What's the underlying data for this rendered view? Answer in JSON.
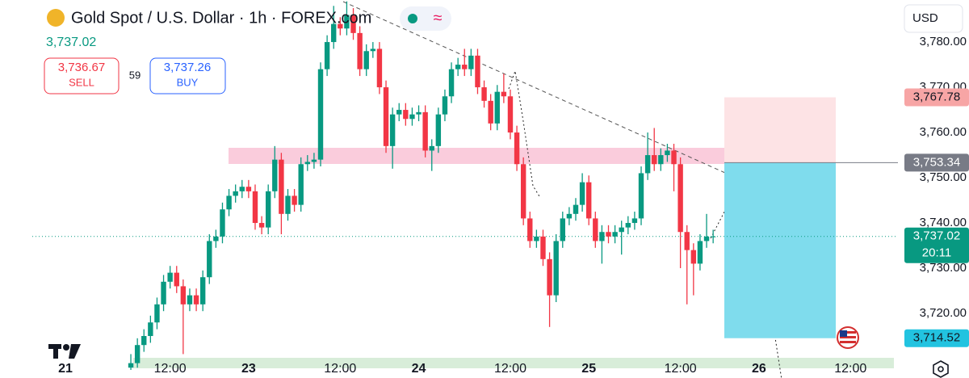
{
  "header": {
    "title": "Gold Spot / U.S. Dollar · 1h · FOREX.com",
    "last_price": "3,737.02",
    "sell_price": "3,736.67",
    "sell_label": "SELL",
    "spread": "59",
    "buy_price": "3,737.26",
    "buy_label": "BUY",
    "currency": "USD"
  },
  "chart_data": {
    "type": "candlestick",
    "up_color": "#089981",
    "down_color": "#f23645",
    "x": [
      1,
      2,
      3,
      4,
      5,
      6,
      7,
      8,
      9,
      10,
      11,
      12,
      13,
      14,
      15,
      16,
      17,
      18,
      19,
      20,
      21,
      22,
      23,
      24,
      25,
      26,
      27,
      28,
      29,
      30,
      31,
      32,
      33,
      34,
      35,
      36,
      37,
      38,
      39,
      40,
      41,
      42,
      43,
      44,
      45,
      46,
      47,
      48,
      49,
      50,
      51,
      52,
      53,
      54,
      55,
      56,
      57,
      58,
      59,
      60,
      61,
      62,
      63,
      64,
      65,
      66,
      67,
      68,
      69,
      70,
      71,
      72,
      73,
      74,
      75,
      76,
      77,
      78,
      79,
      80,
      81,
      82,
      83,
      84,
      85,
      86,
      87,
      88,
      89,
      90
    ],
    "open": [
      3708,
      3709,
      3713,
      3715,
      3718,
      3722,
      3727,
      3729,
      3726,
      3722,
      3724,
      3722,
      3728,
      3736,
      3737,
      3743,
      3746,
      3747,
      3748,
      3747,
      3740,
      3739,
      3747,
      3754,
      3742,
      3746,
      3744,
      3753,
      3753.5,
      3754,
      3774,
      3780,
      3784,
      3783,
      3786,
      3782,
      3774,
      3778,
      3778.5,
      3770,
      3757,
      3764,
      3765,
      3763,
      3764,
      3764.5,
      3756,
      3757,
      3764,
      3768,
      3774,
      3775,
      3774,
      3777,
      3770,
      3767,
      3762,
      3769,
      3768,
      3760,
      3753,
      3741,
      3736,
      3737,
      3732,
      3724,
      3736,
      3741,
      3742,
      3744,
      3749,
      3741,
      3736,
      3738,
      3737,
      3738,
      3739,
      3740,
      3741,
      3751,
      3755,
      3753,
      3755,
      3756,
      3753,
      3738,
      3734,
      3731,
      3736,
      3737
    ],
    "high": [
      3711,
      3714.5,
      3716.5,
      3719.5,
      3723.5,
      3728.5,
      3730.5,
      3730.5,
      3727.5,
      3725.5,
      3725.5,
      3729.5,
      3737.5,
      3738.5,
      3744.5,
      3747.5,
      3748.5,
      3749.5,
      3749.5,
      3748.5,
      3741.5,
      3748.5,
      3757,
      3755.5,
      3747.5,
      3747.5,
      3754.5,
      3755,
      3755.5,
      3775.5,
      3781.5,
      3788,
      3785.5,
      3789,
      3787.5,
      3783.5,
      3779.5,
      3780,
      3780,
      3771.5,
      3765.5,
      3766.5,
      3766.5,
      3765.5,
      3766,
      3766,
      3758.5,
      3765.5,
      3769.5,
      3775.5,
      3776.5,
      3778.5,
      3778.5,
      3778.5,
      3771.5,
      3768.5,
      3770.5,
      3773,
      3769.5,
      3761.5,
      3754.5,
      3742.5,
      3738.5,
      3738.5,
      3733.5,
      3737.5,
      3742.5,
      3743.5,
      3745.5,
      3751,
      3750.5,
      3742.5,
      3739.5,
      3739.5,
      3739.5,
      3740.5,
      3741.5,
      3742.5,
      3752.5,
      3760,
      3761,
      3756.5,
      3757.5,
      3757.5,
      3754.5,
      3739.5,
      3735.5,
      3737.5,
      3742,
      3738.5
    ],
    "low": [
      3707.5,
      3708,
      3711.5,
      3713.5,
      3716.5,
      3720.5,
      3725.5,
      3724.5,
      3711,
      3720.5,
      3720.5,
      3720.5,
      3726.5,
      3734.5,
      3735.5,
      3741.5,
      3744.5,
      3745.5,
      3745.5,
      3738.5,
      3737.5,
      3737.5,
      3745.5,
      3737.5,
      3740.5,
      3742.5,
      3742.5,
      3751.5,
      3752,
      3752.5,
      3772.5,
      3778.5,
      3781.5,
      3781.5,
      3780.5,
      3772.5,
      3772.5,
      3776.5,
      3768.5,
      3755.5,
      3752,
      3762.5,
      3761.5,
      3761.5,
      3762.5,
      3754.5,
      3751.5,
      3755.5,
      3762.5,
      3766.5,
      3772.5,
      3772.5,
      3772.5,
      3768.5,
      3765.5,
      3760.5,
      3760.5,
      3766.5,
      3758.5,
      3751.5,
      3739.5,
      3734.5,
      3734.5,
      3730.5,
      3717,
      3722.5,
      3734.5,
      3739.5,
      3740.5,
      3742.5,
      3739.5,
      3734.5,
      3731,
      3735.5,
      3735.5,
      3733,
      3737.5,
      3738.5,
      3739.5,
      3749.5,
      3751.5,
      3751.5,
      3753.5,
      3747,
      3730,
      3722,
      3724,
      3729.5,
      3734.5,
      3735.5
    ],
    "close": [
      3709,
      3713,
      3715,
      3718,
      3722,
      3727,
      3729,
      3726,
      3722,
      3724,
      3722,
      3728,
      3736,
      3737,
      3743,
      3746,
      3747,
      3748,
      3747,
      3740,
      3739,
      3747,
      3754,
      3742,
      3746,
      3744,
      3753,
      3753.5,
      3754,
      3774,
      3780,
      3784,
      3783,
      3786,
      3782,
      3774,
      3778,
      3778.5,
      3770,
      3757,
      3764,
      3765,
      3763,
      3764,
      3764.5,
      3756,
      3757,
      3764,
      3768,
      3774,
      3775,
      3774,
      3777,
      3770,
      3767,
      3762,
      3769,
      3768,
      3760,
      3753,
      3741,
      3736,
      3737,
      3732,
      3724,
      3736,
      3741,
      3742,
      3744,
      3749,
      3741,
      3736,
      3738,
      3737,
      3738,
      3739,
      3740,
      3741,
      3751,
      3755,
      3753,
      3755,
      3756,
      3753,
      3738,
      3734,
      3731,
      3736,
      3737,
      3737.02
    ],
    "xlim": [
      -19,
      118
    ],
    "xticks": [
      {
        "value": -9,
        "label": "21"
      },
      {
        "value": 7,
        "label": "12:00"
      },
      {
        "value": 19,
        "label": "23"
      },
      {
        "value": 33,
        "label": "12:00"
      },
      {
        "value": 45,
        "label": "24"
      },
      {
        "value": 59,
        "label": "12:00"
      },
      {
        "value": 71,
        "label": "25"
      },
      {
        "value": 85,
        "label": "12:00"
      },
      {
        "value": 97,
        "label": "26"
      },
      {
        "value": 111,
        "label": "12:00"
      }
    ],
    "ylim": [
      3707.5,
      3789.3
    ],
    "yticks": [
      {
        "value": 3720,
        "label": "3,720.00"
      },
      {
        "value": 3730,
        "label": "3,730.00"
      },
      {
        "value": 3740,
        "label": "3,740.00"
      },
      {
        "value": 3750,
        "label": "3,750.00"
      },
      {
        "value": 3760,
        "label": "3,760.00"
      },
      {
        "value": 3770,
        "label": "3,770.00"
      },
      {
        "value": 3780,
        "label": "3,780.00"
      }
    ],
    "position": {
      "stop": {
        "value": 3767.78,
        "label": "3,767.78"
      },
      "entry": {
        "value": 3753.34,
        "label": "3,753.34"
      },
      "target": {
        "value": 3714.52,
        "label": "3,714.52"
      }
    },
    "last_price": {
      "value": 3737.02,
      "label": "3,737.02",
      "countdown": "20:11"
    }
  }
}
